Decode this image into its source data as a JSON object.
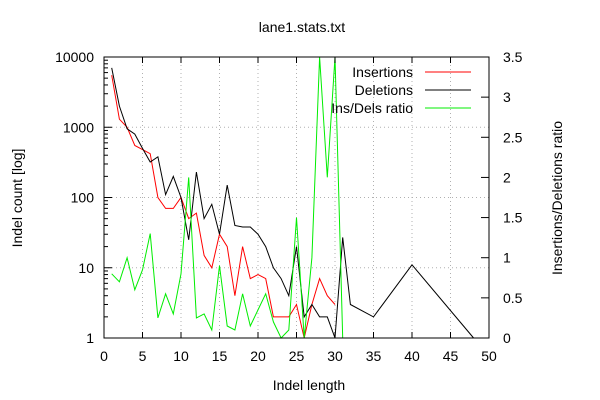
{
  "chart_data": {
    "type": "line",
    "title": "lane1.stats.txt",
    "xlabel": "Indel length",
    "ylabel": "Indel count [log]",
    "y2label": "Insertions/Deletions ratio",
    "xlim": [
      0,
      50
    ],
    "ylim": [
      1,
      10000
    ],
    "y2lim": [
      0,
      3.5
    ],
    "yscale": "log",
    "grid": true,
    "legend_position": "top-right",
    "x_ticks": [
      "0",
      "5",
      "10",
      "15",
      "20",
      "25",
      "30",
      "35",
      "40",
      "45",
      "50"
    ],
    "y_ticks": [
      "1",
      "10",
      "100",
      "1000",
      "10000"
    ],
    "y2_ticks": [
      "0",
      "0.5",
      "1",
      "1.5",
      "2",
      "2.5",
      "3",
      "3.5"
    ],
    "series": [
      {
        "name": "Insertions",
        "color": "#ff0000",
        "axis": "y",
        "x": [
          1,
          2,
          3,
          4,
          5,
          6,
          7,
          8,
          9,
          10,
          11,
          12,
          13,
          14,
          15,
          16,
          17,
          18,
          19,
          20,
          21,
          22,
          23,
          24,
          25,
          26,
          27,
          28,
          29,
          30
        ],
        "values": [
          5500,
          1300,
          1000,
          550,
          480,
          420,
          100,
          70,
          70,
          100,
          50,
          60,
          15,
          10,
          30,
          20,
          4,
          20,
          7,
          8,
          7,
          2,
          2,
          2,
          3,
          1,
          3,
          7,
          4,
          3
        ]
      },
      {
        "name": "Deletions",
        "color": "#000000",
        "axis": "y",
        "x": [
          1,
          2,
          3,
          4,
          5,
          6,
          7,
          8,
          9,
          10,
          11,
          12,
          13,
          14,
          15,
          16,
          17,
          18,
          19,
          20,
          21,
          22,
          23,
          24,
          25,
          26,
          27,
          28,
          29,
          30,
          31,
          32,
          35,
          40,
          48
        ],
        "values": [
          7000,
          2000,
          950,
          800,
          500,
          320,
          380,
          110,
          200,
          100,
          25,
          230,
          50,
          80,
          30,
          150,
          40,
          38,
          38,
          30,
          20,
          10,
          7,
          4,
          20,
          2,
          3,
          2,
          2,
          1,
          27,
          3,
          2,
          11,
          1
        ]
      },
      {
        "name": "Ins/Dels ratio",
        "color": "#00ee00",
        "axis": "y2",
        "x": [
          1,
          2,
          3,
          4,
          5,
          6,
          7,
          8,
          9,
          10,
          11,
          12,
          13,
          14,
          15,
          16,
          17,
          18,
          19,
          20,
          21,
          22,
          23,
          24,
          25,
          26,
          27,
          28,
          29,
          30,
          31
        ],
        "values": [
          0.8,
          0.7,
          1.0,
          0.6,
          0.85,
          1.3,
          0.25,
          0.55,
          0.3,
          0.8,
          2.0,
          0.25,
          0.3,
          0.1,
          0.9,
          0.15,
          0.1,
          0.55,
          0.15,
          0.35,
          0.55,
          0.2,
          0.0,
          0.1,
          1.5,
          0.0,
          1.0,
          3.5,
          2.0,
          3.5,
          0.0
        ]
      }
    ]
  }
}
